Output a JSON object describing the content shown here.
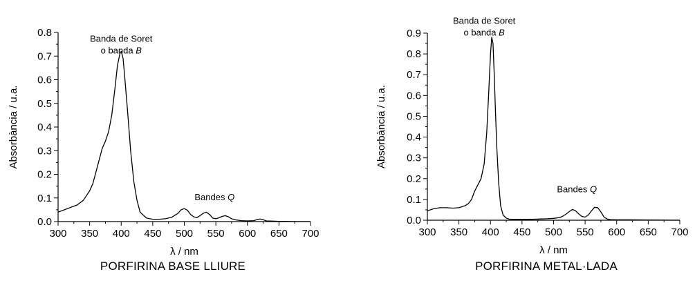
{
  "chart_data": [
    {
      "type": "line",
      "title": "PORFIRINA BASE LLIURE",
      "xlabel": "λ / nm",
      "ylabel": "Absorbància / u.a.",
      "xlim": [
        300,
        700
      ],
      "ylim": [
        0,
        0.8
      ],
      "xticks": [
        300,
        350,
        400,
        450,
        500,
        550,
        600,
        650,
        700
      ],
      "yticks": [
        0.0,
        0.1,
        0.2,
        0.3,
        0.4,
        0.5,
        0.6,
        0.7,
        0.8
      ],
      "annotations": [
        {
          "lines": [
            "Banda de Soret",
            "o banda "
          ],
          "italic": "B",
          "x": 400,
          "y": 0.76
        },
        {
          "lines": [
            "Bandes "
          ],
          "italic": "Q",
          "x": 548,
          "y": 0.09
        }
      ],
      "series": [
        {
          "x": [
            300,
            310,
            320,
            330,
            340,
            350,
            355,
            360,
            365,
            370,
            375,
            380,
            385,
            390,
            394,
            398,
            400,
            403,
            406,
            410,
            415,
            420,
            425,
            430,
            440,
            450,
            460,
            470,
            480,
            490,
            495,
            500,
            505,
            510,
            515,
            520,
            525,
            530,
            535,
            540,
            545,
            550,
            555,
            560,
            565,
            570,
            575,
            580,
            590,
            600,
            610,
            615,
            620,
            625,
            630,
            640,
            650,
            660,
            680,
            700
          ],
          "y": [
            0.04,
            0.05,
            0.06,
            0.07,
            0.09,
            0.13,
            0.16,
            0.21,
            0.26,
            0.31,
            0.34,
            0.38,
            0.45,
            0.56,
            0.66,
            0.71,
            0.72,
            0.69,
            0.6,
            0.47,
            0.3,
            0.17,
            0.09,
            0.04,
            0.015,
            0.01,
            0.01,
            0.012,
            0.018,
            0.035,
            0.05,
            0.055,
            0.048,
            0.03,
            0.02,
            0.017,
            0.025,
            0.035,
            0.04,
            0.03,
            0.015,
            0.012,
            0.016,
            0.022,
            0.025,
            0.02,
            0.012,
            0.008,
            0.004,
            0.003,
            0.004,
            0.008,
            0.011,
            0.008,
            0.003,
            0.002,
            0.001,
            0.001,
            0.0,
            0.0
          ]
        }
      ]
    },
    {
      "type": "line",
      "title": "PORFIRINA METAL·LADA",
      "xlabel": "λ / nm",
      "ylabel": "Absorbància / u.a.",
      "xlim": [
        300,
        700
      ],
      "ylim": [
        0,
        0.9
      ],
      "xticks": [
        300,
        350,
        400,
        450,
        500,
        550,
        600,
        650,
        700
      ],
      "yticks": [
        0.0,
        0.1,
        0.2,
        0.3,
        0.4,
        0.5,
        0.6,
        0.7,
        0.8,
        0.9
      ],
      "annotations": [
        {
          "lines": [
            "Banda de Soret",
            "o banda "
          ],
          "italic": "B",
          "x": 390,
          "y": 0.945
        },
        {
          "lines": [
            "Bandes "
          ],
          "italic": "Q",
          "x": 537,
          "y": 0.135
        }
      ],
      "series": [
        {
          "x": [
            300,
            310,
            320,
            330,
            340,
            350,
            360,
            365,
            370,
            375,
            380,
            385,
            390,
            394,
            397,
            400,
            402,
            404,
            406,
            408,
            410,
            413,
            416,
            420,
            425,
            430,
            440,
            450,
            460,
            470,
            480,
            490,
            500,
            510,
            515,
            520,
            525,
            530,
            535,
            540,
            545,
            550,
            555,
            560,
            565,
            570,
            575,
            580,
            585,
            590,
            600,
            620,
            650,
            700
          ],
          "y": [
            0.045,
            0.055,
            0.06,
            0.06,
            0.058,
            0.06,
            0.07,
            0.08,
            0.1,
            0.14,
            0.17,
            0.2,
            0.27,
            0.42,
            0.6,
            0.8,
            0.88,
            0.85,
            0.7,
            0.52,
            0.35,
            0.18,
            0.07,
            0.025,
            0.01,
            0.005,
            0.004,
            0.004,
            0.004,
            0.005,
            0.006,
            0.007,
            0.009,
            0.013,
            0.02,
            0.03,
            0.042,
            0.052,
            0.045,
            0.03,
            0.018,
            0.015,
            0.025,
            0.045,
            0.062,
            0.06,
            0.04,
            0.015,
            0.006,
            0.003,
            0.002,
            0.002,
            0.001,
            0.0
          ]
        }
      ]
    }
  ]
}
